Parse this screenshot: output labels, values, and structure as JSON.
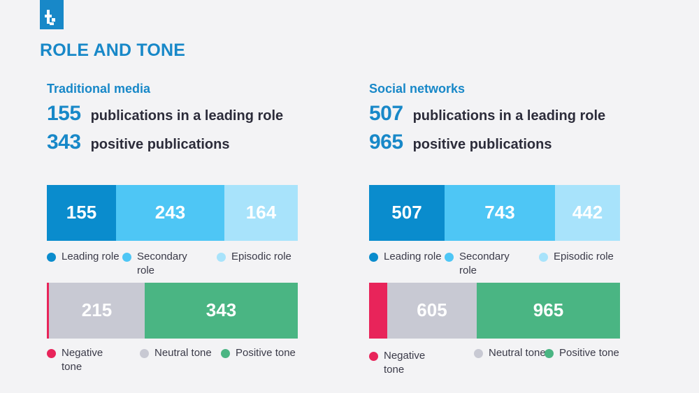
{
  "header": {
    "title": "ROLE AND TONE"
  },
  "colors": {
    "leading": "#0a8ccd",
    "secondary": "#4ec6f5",
    "episodic": "#a8e3fb",
    "negative": "#e8245a",
    "neutral": "#c8c9d3",
    "positive": "#4ab583",
    "accent": "#1888c8"
  },
  "legend": {
    "role": [
      "Leading role",
      "Secondary role",
      "Episodic role"
    ],
    "tone": [
      "Negative tone",
      "Neutral tone",
      "Positive tone"
    ]
  },
  "panels": [
    {
      "subtitle": "Traditional media",
      "stat1": {
        "value": "155",
        "text": "publications in a leading role"
      },
      "stat2": {
        "value": "343",
        "text": "positive publications"
      }
    },
    {
      "subtitle": "Social networks",
      "stat1": {
        "value": "507",
        "text": "publications in a leading role"
      },
      "stat2": {
        "value": "965",
        "text": "positive publications"
      }
    }
  ],
  "chart_data": [
    {
      "type": "bar",
      "stacked": true,
      "orientation": "horizontal",
      "title": "Traditional media — role",
      "categories": [
        "Leading role",
        "Secondary role",
        "Episodic role"
      ],
      "values": [
        155,
        243,
        164
      ]
    },
    {
      "type": "bar",
      "stacked": true,
      "orientation": "horizontal",
      "title": "Traditional media — tone",
      "categories": [
        "Negative tone",
        "Neutral tone",
        "Positive tone"
      ],
      "values": [
        4,
        215,
        343
      ]
    },
    {
      "type": "bar",
      "stacked": true,
      "orientation": "horizontal",
      "title": "Social networks — role",
      "categories": [
        "Leading role",
        "Secondary role",
        "Episodic role"
      ],
      "values": [
        507,
        743,
        442
      ]
    },
    {
      "type": "bar",
      "stacked": true,
      "orientation": "horizontal",
      "title": "Social networks — tone",
      "categories": [
        "Negative tone",
        "Neutral tone",
        "Positive tone"
      ],
      "values": [
        122,
        605,
        965
      ]
    }
  ]
}
